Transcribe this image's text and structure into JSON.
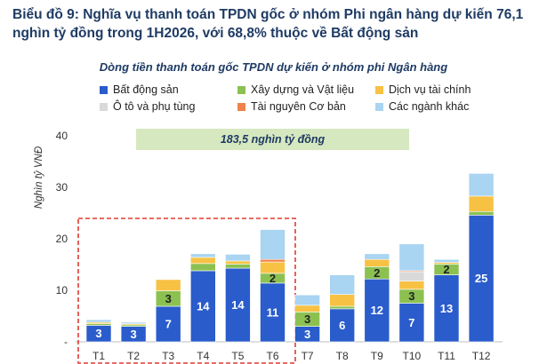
{
  "title": "Biểu đồ 9: Nghĩa vụ thanh toán TPDN gốc ở nhóm Phi ngân hàng dự kiến 76,1 nghìn tỷ đồng trong 1H2026, với 68,8% thuộc về Bất động sản",
  "chart_data": {
    "type": "bar",
    "stacked": true,
    "title": "Dòng tiền thanh toán gốc TPDN dự kiến ở nhóm phi Ngân hàng",
    "ylabel": "Nghìn tỷ VNĐ",
    "ylim": [
      0,
      40
    ],
    "yticks": [
      "-",
      "10",
      "20",
      "30",
      "40"
    ],
    "categories": [
      "T1",
      "T2",
      "T3",
      "T4",
      "T5",
      "T6",
      "T7",
      "T8",
      "T9",
      "T10",
      "T11",
      "T12"
    ],
    "banner": "183,5 nghìn tỷ đồng",
    "highlight": [
      "T1",
      "T6"
    ],
    "legend_position": "top",
    "series": [
      {
        "name": "Bất động sản",
        "color": "#2a5ccc",
        "values": [
          3.2,
          3.0,
          6.9,
          13.8,
          14.3,
          11.4,
          3.0,
          6.4,
          12.2,
          7.5,
          13.0,
          24.6
        ],
        "labels": [
          "3",
          "3",
          "7",
          "14",
          "14",
          "11",
          "3",
          "6",
          "12",
          "7",
          "13",
          "25"
        ]
      },
      {
        "name": "Xây dựng và Vật liệu",
        "color": "#8cc152",
        "values": [
          0.3,
          0.3,
          3.0,
          1.4,
          0.8,
          1.9,
          2.8,
          0.5,
          2.4,
          2.7,
          2.1,
          0.7
        ],
        "labels": [
          "",
          "",
          "3",
          "",
          "",
          "2",
          "3",
          "",
          "2",
          "3",
          "2",
          ""
        ]
      },
      {
        "name": "Dịch vụ tài chính",
        "color": "#f7c244",
        "values": [
          0.3,
          0.2,
          2.2,
          1.2,
          0.6,
          2.2,
          1.3,
          2.3,
          1.4,
          1.6,
          0.3,
          3.0
        ],
        "labels": [
          "",
          "",
          "",
          "",
          "",
          "",
          "",
          "",
          "",
          "",
          "",
          ""
        ]
      },
      {
        "name": "Ô tô và phụ tùng",
        "color": "#d9d9d9",
        "values": [
          0,
          0,
          0,
          0,
          0,
          0,
          0,
          0,
          0,
          1.8,
          0,
          0
        ],
        "labels": [
          "",
          "",
          "",
          "",
          "",
          "",
          "",
          "",
          "",
          "",
          "",
          ""
        ]
      },
      {
        "name": "Tài nguyên Cơ bản",
        "color": "#f0834a",
        "values": [
          0,
          0,
          0,
          0,
          0,
          0.5,
          0,
          0,
          0,
          0.2,
          0,
          0
        ],
        "labels": [
          "",
          "",
          "",
          "",
          "",
          "",
          "",
          "",
          "",
          "",
          "",
          ""
        ]
      },
      {
        "name": "Các ngành khác",
        "color": "#a9d4f2",
        "values": [
          0.5,
          0.3,
          0.1,
          0.7,
          1.3,
          5.8,
          2.0,
          3.8,
          1.1,
          5.2,
          0.6,
          4.4
        ],
        "labels": [
          "",
          "",
          "",
          "",
          "",
          "",
          "",
          "",
          "",
          "",
          "",
          ""
        ]
      }
    ]
  }
}
